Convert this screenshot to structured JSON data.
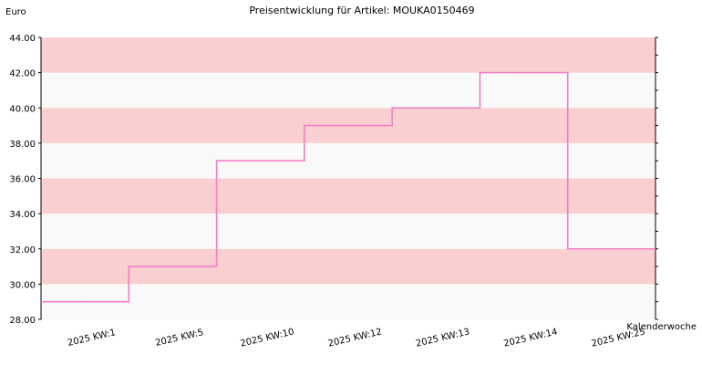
{
  "chart_data": {
    "type": "line",
    "line_shape": "step",
    "title": "Preisentwicklung für Artikel: MOUKA0150469",
    "ylabel": "Euro",
    "xlabel": "Kalenderwoche",
    "categories": [
      "2025 KW:1",
      "2025 KW:5",
      "2025 KW:10",
      "2025 KW:12",
      "2025 KW:13",
      "2025 KW:14",
      "2025 KW:25"
    ],
    "series": [
      {
        "values": [
          29.0,
          31.0,
          37.0,
          39.0,
          40.0,
          42.0,
          32.0
        ]
      }
    ],
    "ylim": [
      28,
      44
    ],
    "yticks": [
      "28.00",
      "30.00",
      "32.00",
      "34.00",
      "36.00",
      "38.00",
      "40.00",
      "42.00",
      "44.00"
    ],
    "band_colors": [
      "#f9f9f9",
      "#f9cfcf"
    ],
    "line_color": "#f080c8",
    "grid": true
  }
}
